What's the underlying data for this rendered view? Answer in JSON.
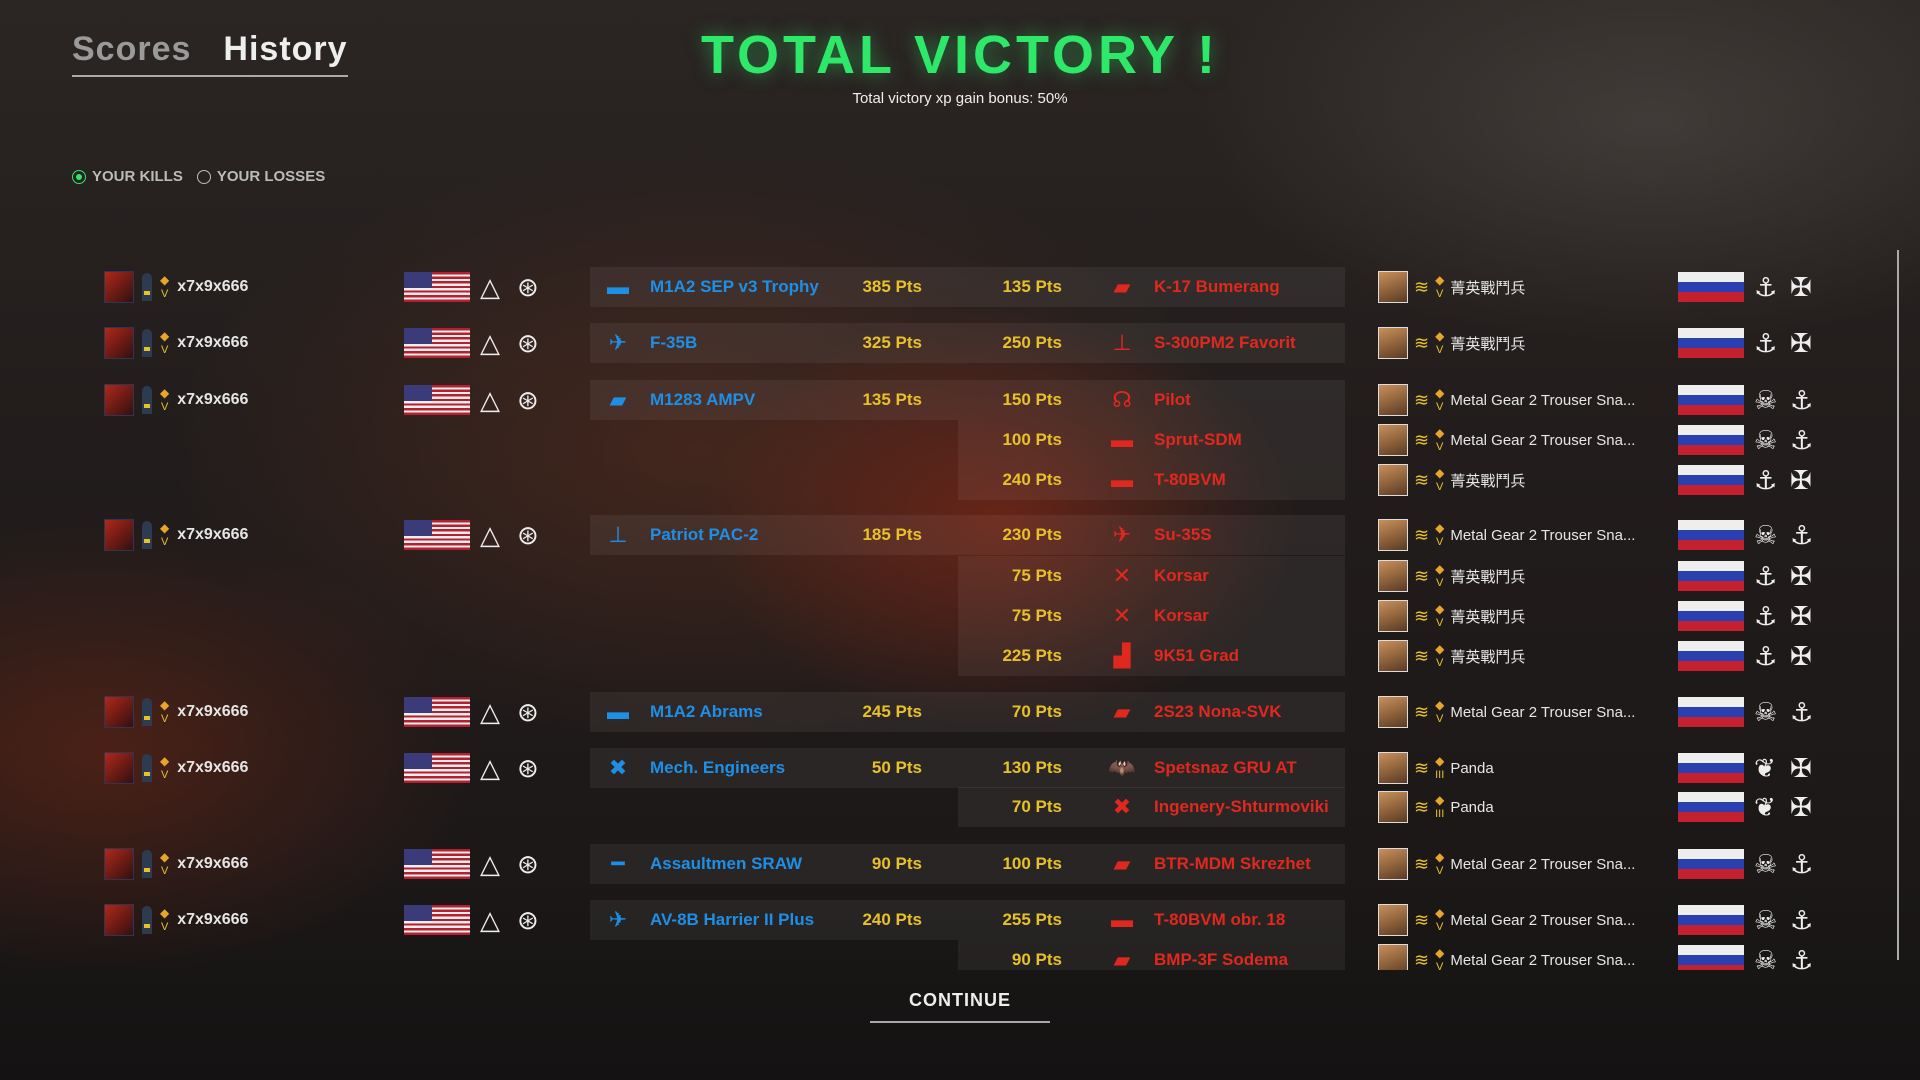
{
  "tabs": [
    {
      "label": "Scores",
      "active": false
    },
    {
      "label": "History",
      "active": true
    }
  ],
  "title": "TOTAL VICTORY !",
  "subtitle": "Total victory xp gain bonus: 50%",
  "filters": [
    {
      "label": "YOUR KILLS",
      "selected": true
    },
    {
      "label": "YOUR LOSSES",
      "selected": false
    }
  ],
  "colors": {
    "title": "#2ee86a",
    "friendly": "#1e8fe6",
    "enemy": "#e0281e",
    "points": "#e8c12a"
  },
  "rows": [
    {
      "player": "x7x9x666",
      "unit": "M1A2 SEP v3 Trophy",
      "unit_icon": "tank-icon",
      "pts": "385 Pts",
      "kill_pts": "135 Pts",
      "enemy_unit": "K-17 Bumerang",
      "enemy_icon": "apc-icon",
      "enemy_player": "菁英戰鬥兵",
      "enemy_rank": "V",
      "enemy_ins": [
        "anchor",
        "crossed-rifles"
      ]
    },
    {
      "player": "x7x9x666",
      "unit": "F-35B",
      "unit_icon": "jet-icon",
      "pts": "325 Pts",
      "kill_pts": "250 Pts",
      "enemy_unit": "S-300PM2 Favorit",
      "enemy_icon": "sam-icon",
      "enemy_player": "菁英戰鬥兵",
      "enemy_rank": "V",
      "enemy_ins": [
        "anchor",
        "crossed-rifles"
      ]
    },
    {
      "player": "x7x9x666",
      "unit": "M1283 AMPV",
      "unit_icon": "apc-icon",
      "pts": "135 Pts",
      "kill_pts": "150 Pts",
      "enemy_unit": "Pilot",
      "enemy_icon": "pilot-icon",
      "enemy_player": "Metal Gear 2 Trouser Sna...",
      "enemy_rank": "V",
      "enemy_ins": [
        "skull",
        "anchor"
      ]
    },
    {
      "kill_pts": "100 Pts",
      "enemy_unit": "Sprut-SDM",
      "enemy_icon": "tank-icon",
      "enemy_player": "Metal Gear 2 Trouser Sna...",
      "enemy_rank": "V",
      "enemy_ins": [
        "skull",
        "anchor"
      ]
    },
    {
      "kill_pts": "240 Pts",
      "enemy_unit": "T-80BVM",
      "enemy_icon": "tank-icon",
      "enemy_player": "菁英戰鬥兵",
      "enemy_rank": "V",
      "enemy_ins": [
        "anchor",
        "crossed-rifles"
      ]
    },
    {
      "player": "x7x9x666",
      "unit": "Patriot PAC-2",
      "unit_icon": "sam-icon",
      "pts": "185 Pts",
      "kill_pts": "230 Pts",
      "enemy_unit": "Su-35S",
      "enemy_icon": "jet-icon",
      "enemy_player": "Metal Gear 2 Trouser Sna...",
      "enemy_rank": "V",
      "enemy_ins": [
        "skull",
        "anchor"
      ]
    },
    {
      "kill_pts": "75 Pts",
      "enemy_unit": "Korsar",
      "enemy_icon": "drone-icon",
      "enemy_player": "菁英戰鬥兵",
      "enemy_rank": "V",
      "enemy_ins": [
        "anchor",
        "crossed-rifles"
      ]
    },
    {
      "kill_pts": "75 Pts",
      "enemy_unit": "Korsar",
      "enemy_icon": "drone-icon",
      "enemy_player": "菁英戰鬥兵",
      "enemy_rank": "V",
      "enemy_ins": [
        "anchor",
        "crossed-rifles"
      ]
    },
    {
      "kill_pts": "225 Pts",
      "enemy_unit": "9K51 Grad",
      "enemy_icon": "artillery-icon",
      "enemy_player": "菁英戰鬥兵",
      "enemy_rank": "V",
      "enemy_ins": [
        "anchor",
        "crossed-rifles"
      ]
    },
    {
      "player": "x7x9x666",
      "unit": "M1A2 Abrams",
      "unit_icon": "tank-icon",
      "pts": "245 Pts",
      "kill_pts": "70 Pts",
      "enemy_unit": "2S23 Nona-SVK",
      "enemy_icon": "apc-icon",
      "enemy_player": "Metal Gear 2 Trouser Sna...",
      "enemy_rank": "V",
      "enemy_ins": [
        "skull",
        "anchor"
      ]
    },
    {
      "player": "x7x9x666",
      "unit": "Mech. Engineers",
      "unit_icon": "engineer-icon",
      "pts": "50 Pts",
      "kill_pts": "130 Pts",
      "enemy_unit": "Spetsnaz GRU AT",
      "enemy_icon": "bat-icon",
      "enemy_player": "Panda",
      "enemy_rank": "III",
      "enemy_ins": [
        "wreath",
        "crossed-rifles"
      ]
    },
    {
      "kill_pts": "70 Pts",
      "enemy_unit": "Ingenery-Shturmoviki",
      "enemy_icon": "engineer-icon",
      "enemy_player": "Panda",
      "enemy_rank": "III",
      "enemy_ins": [
        "wreath",
        "crossed-rifles"
      ]
    },
    {
      "player": "x7x9x666",
      "unit": "Assaultmen SRAW",
      "unit_icon": "launcher-icon",
      "pts": "90 Pts",
      "kill_pts": "100 Pts",
      "enemy_unit": "BTR-MDM  Skrezhet",
      "enemy_icon": "apc-icon",
      "enemy_player": "Metal Gear 2 Trouser Sna...",
      "enemy_rank": "V",
      "enemy_ins": [
        "skull",
        "anchor"
      ]
    },
    {
      "player": "x7x9x666",
      "unit": "AV-8B Harrier II Plus",
      "unit_icon": "jet-icon",
      "pts": "240 Pts",
      "kill_pts": "255 Pts",
      "enemy_unit": "T-80BVM obr. 18",
      "enemy_icon": "tank-icon",
      "enemy_player": "Metal Gear 2 Trouser Sna...",
      "enemy_rank": "V",
      "enemy_ins": [
        "skull",
        "anchor"
      ]
    },
    {
      "kill_pts": "90 Pts",
      "enemy_unit": "BMP-3F Sodema",
      "enemy_icon": "apc-icon",
      "enemy_player": "Metal Gear 2 Trouser Sna...",
      "enemy_rank": "V",
      "enemy_ins": [
        "skull",
        "anchor"
      ]
    }
  ],
  "continue_label": "CONTINUE"
}
